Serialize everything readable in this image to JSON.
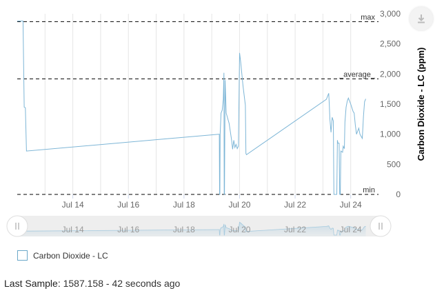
{
  "colors": {
    "series": "#7cb5d6",
    "series_fill": "#7cb5d6",
    "grid": "#e6e6e6",
    "plotline": "#000000"
  },
  "icons": {
    "export": "download-icon"
  },
  "plot_lines": [
    {
      "label": "max",
      "value": 2870
    },
    {
      "label": "_average_",
      "value": 1920
    },
    {
      "label": "min",
      "value": 0
    }
  ],
  "chart_data": {
    "type": "line",
    "y_axis": {
      "title": "Carbon Dioxide - LC (ppm)",
      "range": [
        0,
        3000
      ],
      "ticks": [
        {
          "value": 0,
          "label": "0"
        },
        {
          "value": 500,
          "label": "500"
        },
        {
          "value": 1000,
          "label": "1,000"
        },
        {
          "value": 1500,
          "label": "1,500"
        },
        {
          "value": 2000,
          "label": "2,000"
        },
        {
          "value": 2500,
          "label": "2,500"
        },
        {
          "value": 3000,
          "label": "3,000"
        }
      ],
      "position": "right"
    },
    "x_axis": {
      "range": [
        "2019-07-12T00:00",
        "2019-07-25T00:00"
      ],
      "ticks": [
        {
          "value": "2019-07-14",
          "label": "Jul 14"
        },
        {
          "value": "2019-07-16",
          "label": "Jul 16"
        },
        {
          "value": "2019-07-18",
          "label": "Jul 18"
        },
        {
          "value": "2019-07-20",
          "label": "Jul 20"
        },
        {
          "value": "2019-07-22",
          "label": "Jul 22"
        },
        {
          "value": "2019-07-24",
          "label": "Jul 24"
        }
      ]
    },
    "grid": true,
    "legend_placement": "bottom-left",
    "series": [
      {
        "name": "Carbon Dioxide - LC",
        "points": [
          [
            "2019-07-12T00:00",
            2880
          ],
          [
            "2019-07-12T05:00",
            2880
          ],
          [
            "2019-07-12T06:00",
            1450
          ],
          [
            "2019-07-12T07:00",
            1440
          ],
          [
            "2019-07-12T08:00",
            720
          ],
          [
            "2019-07-19T06:00",
            1000
          ],
          [
            "2019-07-19T06:30",
            1000
          ],
          [
            "2019-07-19T06:45",
            0
          ],
          [
            "2019-07-19T07:00",
            0
          ],
          [
            "2019-07-19T07:15",
            1000
          ],
          [
            "2019-07-19T08:00",
            1350
          ],
          [
            "2019-07-19T09:00",
            1400
          ],
          [
            "2019-07-19T10:00",
            1580
          ],
          [
            "2019-07-19T10:30",
            2020
          ],
          [
            "2019-07-19T10:45",
            0
          ],
          [
            "2019-07-19T11:00",
            0
          ],
          [
            "2019-07-19T11:30",
            1900
          ],
          [
            "2019-07-19T12:30",
            1350
          ],
          [
            "2019-07-19T15:00",
            1180
          ],
          [
            "2019-07-19T17:00",
            920
          ],
          [
            "2019-07-19T18:00",
            750
          ],
          [
            "2019-07-19T19:00",
            900
          ],
          [
            "2019-07-19T20:00",
            780
          ],
          [
            "2019-07-19T21:00",
            830
          ],
          [
            "2019-07-19T22:00",
            760
          ],
          [
            "2019-07-19T23:00",
            800
          ],
          [
            "2019-07-20T00:00",
            2350
          ],
          [
            "2019-07-20T01:00",
            2200
          ],
          [
            "2019-07-20T03:00",
            1800
          ],
          [
            "2019-07-20T05:00",
            1480
          ],
          [
            "2019-07-20T05:30",
            680
          ],
          [
            "2019-07-20T06:00",
            660
          ],
          [
            "2019-07-23T03:00",
            1580
          ],
          [
            "2019-07-23T05:00",
            1680
          ],
          [
            "2019-07-23T05:30",
            1500
          ],
          [
            "2019-07-23T06:00",
            1250
          ],
          [
            "2019-07-23T07:00",
            1030
          ],
          [
            "2019-07-23T08:00",
            1280
          ],
          [
            "2019-07-23T09:00",
            1220
          ],
          [
            "2019-07-23T09:30",
            0
          ],
          [
            "2019-07-23T12:00",
            0
          ],
          [
            "2019-07-23T12:30",
            900
          ],
          [
            "2019-07-23T13:00",
            850
          ],
          [
            "2019-07-23T14:00",
            850
          ],
          [
            "2019-07-23T14:30",
            0
          ],
          [
            "2019-07-23T15:00",
            0
          ],
          [
            "2019-07-23T15:30",
            720
          ],
          [
            "2019-07-23T17:00",
            700
          ],
          [
            "2019-07-23T17:30",
            800
          ],
          [
            "2019-07-23T18:30",
            760
          ],
          [
            "2019-07-23T19:00",
            1200
          ],
          [
            "2019-07-23T20:00",
            1450
          ],
          [
            "2019-07-23T21:00",
            1550
          ],
          [
            "2019-07-23T22:00",
            1600
          ],
          [
            "2019-07-24T00:00",
            1500
          ],
          [
            "2019-07-24T02:00",
            1380
          ],
          [
            "2019-07-24T03:00",
            1350
          ],
          [
            "2019-07-24T04:00",
            1150
          ],
          [
            "2019-07-24T05:00",
            1000
          ],
          [
            "2019-07-24T07:00",
            1100
          ],
          [
            "2019-07-24T08:00",
            1000
          ],
          [
            "2019-07-24T10:00",
            930
          ],
          [
            "2019-07-24T11:00",
            1300
          ],
          [
            "2019-07-24T12:00",
            1540
          ],
          [
            "2019-07-24T13:00",
            1587
          ]
        ]
      }
    ],
    "navigator": {
      "range": [
        "2019-07-12T00:00",
        "2019-07-25T00:00"
      ]
    }
  },
  "legend": {
    "items": [
      {
        "label": "Carbon Dioxide - LC"
      }
    ]
  },
  "status": {
    "label": "Last Sample:",
    "value": "1587.158 - 42 seconds ago"
  }
}
